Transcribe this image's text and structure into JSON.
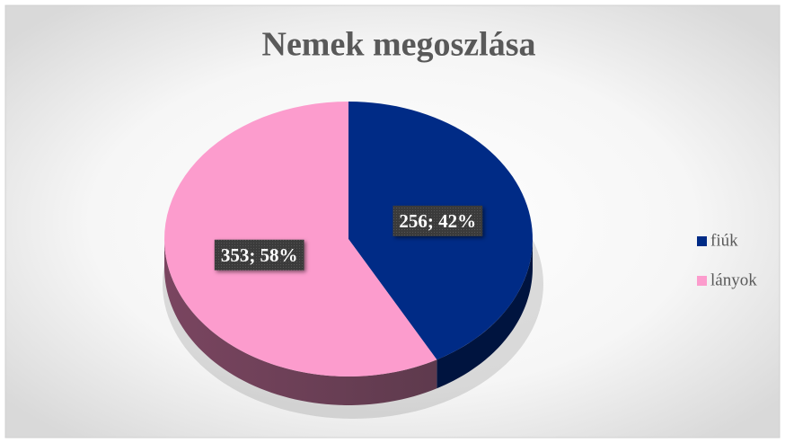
{
  "chart_data": {
    "type": "pie",
    "title": "Nemek megoszlása",
    "categories": [
      "fiúk",
      "lányok"
    ],
    "values": [
      256,
      353
    ],
    "value_labels": [
      "256; 42%",
      "353; 58%"
    ],
    "colors": [
      "#002b86",
      "#fc9ccd"
    ],
    "legend": "right"
  }
}
